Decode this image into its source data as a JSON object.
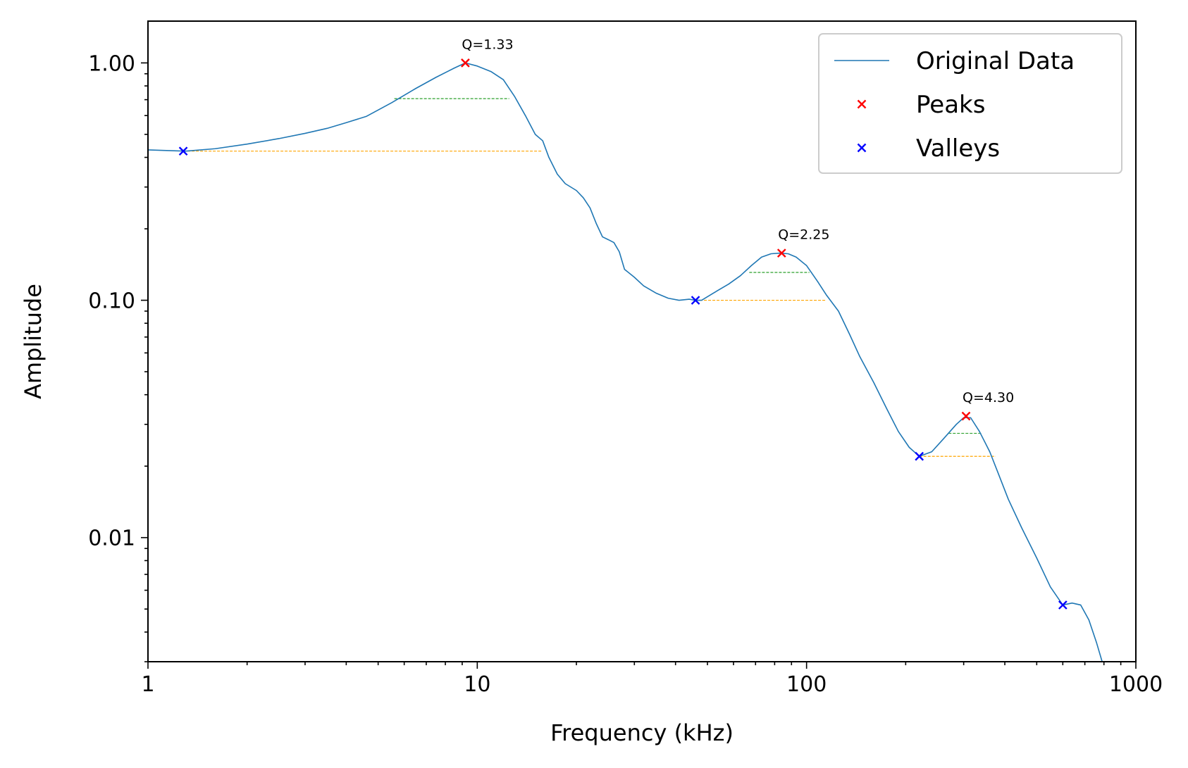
{
  "chart_data": {
    "type": "line",
    "xlabel": "Frequency (kHz)",
    "ylabel": "Amplitude",
    "x_scale": "log",
    "y_scale": "log",
    "xlim": [
      1,
      1000
    ],
    "ylim": [
      0.003,
      1.5
    ],
    "x_ticks": [
      {
        "value": 1,
        "label": "1"
      },
      {
        "value": 10,
        "label": "10"
      },
      {
        "value": 100,
        "label": "100"
      },
      {
        "value": 1000,
        "label": "1000"
      }
    ],
    "y_ticks": [
      {
        "value": 0.01,
        "label": "0.01"
      },
      {
        "value": 0.1,
        "label": "0.10"
      },
      {
        "value": 1,
        "label": "1.00"
      }
    ],
    "grid": false,
    "legend": {
      "position": "top-right",
      "entries": [
        {
          "label": "Original Data",
          "marker": "line",
          "color": "#1f77b4"
        },
        {
          "label": "Peaks",
          "marker": "x",
          "color": "#ff0000"
        },
        {
          "label": "Valleys",
          "marker": "x",
          "color": "#0000ff"
        }
      ]
    },
    "series": [
      {
        "name": "Original Data",
        "color": "#1f77b4",
        "points": [
          [
            1,
            0.43
          ],
          [
            1.3,
            0.425
          ],
          [
            1.6,
            0.435
          ],
          [
            2,
            0.455
          ],
          [
            2.5,
            0.48
          ],
          [
            3,
            0.505
          ],
          [
            3.5,
            0.53
          ],
          [
            4,
            0.56
          ],
          [
            4.6,
            0.595
          ],
          [
            5.5,
            0.68
          ],
          [
            6.5,
            0.78
          ],
          [
            7.5,
            0.87
          ],
          [
            8.5,
            0.95
          ],
          [
            9.2,
            1.0
          ],
          [
            10,
            0.97
          ],
          [
            11,
            0.92
          ],
          [
            12,
            0.85
          ],
          [
            13,
            0.72
          ],
          [
            14,
            0.6
          ],
          [
            15,
            0.5
          ],
          [
            15.8,
            0.47
          ],
          [
            16.5,
            0.4
          ],
          [
            17.5,
            0.34
          ],
          [
            18.5,
            0.31
          ],
          [
            20,
            0.29
          ],
          [
            21,
            0.27
          ],
          [
            22,
            0.245
          ],
          [
            23,
            0.21
          ],
          [
            24,
            0.185
          ],
          [
            25,
            0.18
          ],
          [
            26,
            0.175
          ],
          [
            27,
            0.16
          ],
          [
            28,
            0.135
          ],
          [
            30,
            0.125
          ],
          [
            32,
            0.115
          ],
          [
            35,
            0.107
          ],
          [
            38,
            0.102
          ],
          [
            41,
            0.1
          ],
          [
            44,
            0.101
          ],
          [
            46,
            0.1
          ],
          [
            48,
            0.1
          ],
          [
            52,
            0.107
          ],
          [
            58,
            0.117
          ],
          [
            63,
            0.127
          ],
          [
            68,
            0.14
          ],
          [
            73,
            0.152
          ],
          [
            78,
            0.157
          ],
          [
            83,
            0.158
          ],
          [
            88,
            0.157
          ],
          [
            93,
            0.152
          ],
          [
            100,
            0.14
          ],
          [
            108,
            0.12
          ],
          [
            115,
            0.105
          ],
          [
            125,
            0.09
          ],
          [
            135,
            0.072
          ],
          [
            145,
            0.058
          ],
          [
            160,
            0.045
          ],
          [
            175,
            0.035
          ],
          [
            190,
            0.028
          ],
          [
            205,
            0.024
          ],
          [
            220,
            0.022
          ],
          [
            240,
            0.023
          ],
          [
            260,
            0.026
          ],
          [
            285,
            0.03
          ],
          [
            300,
            0.032
          ],
          [
            315,
            0.032
          ],
          [
            335,
            0.028
          ],
          [
            360,
            0.023
          ],
          [
            380,
            0.019
          ],
          [
            410,
            0.0145
          ],
          [
            450,
            0.011
          ],
          [
            500,
            0.0082
          ],
          [
            550,
            0.0062
          ],
          [
            600,
            0.0052
          ],
          [
            640,
            0.0053
          ],
          [
            680,
            0.0052
          ],
          [
            720,
            0.0045
          ],
          [
            760,
            0.0036
          ],
          [
            790,
            0.003
          ]
        ]
      }
    ],
    "peaks": [
      {
        "x": 9.2,
        "y": 1.0,
        "label": "Q=1.33"
      },
      {
        "x": 84,
        "y": 0.158,
        "label": "Q=2.25"
      },
      {
        "x": 305,
        "y": 0.0325,
        "label": "Q=4.30"
      }
    ],
    "valleys": [
      {
        "x": 1.28,
        "y": 0.425
      },
      {
        "x": 46,
        "y": 0.1
      },
      {
        "x": 220,
        "y": 0.022
      },
      {
        "x": 600,
        "y": 0.0052
      }
    ],
    "half_power_lines": [
      {
        "x1": 5.6,
        "x2": 12.5,
        "y": 0.707,
        "color": "#2ca02c"
      },
      {
        "x1": 67,
        "x2": 102,
        "y": 0.131,
        "color": "#2ca02c"
      },
      {
        "x1": 270,
        "x2": 340,
        "y": 0.0275,
        "color": "#2ca02c"
      }
    ],
    "valley_lines": [
      {
        "x1": 1.28,
        "x2": 15.8,
        "y": 0.425,
        "color": "#ffa500"
      },
      {
        "x1": 46,
        "x2": 115,
        "y": 0.1,
        "color": "#ffa500"
      },
      {
        "x1": 220,
        "x2": 375,
        "y": 0.022,
        "color": "#ffa500"
      }
    ]
  }
}
